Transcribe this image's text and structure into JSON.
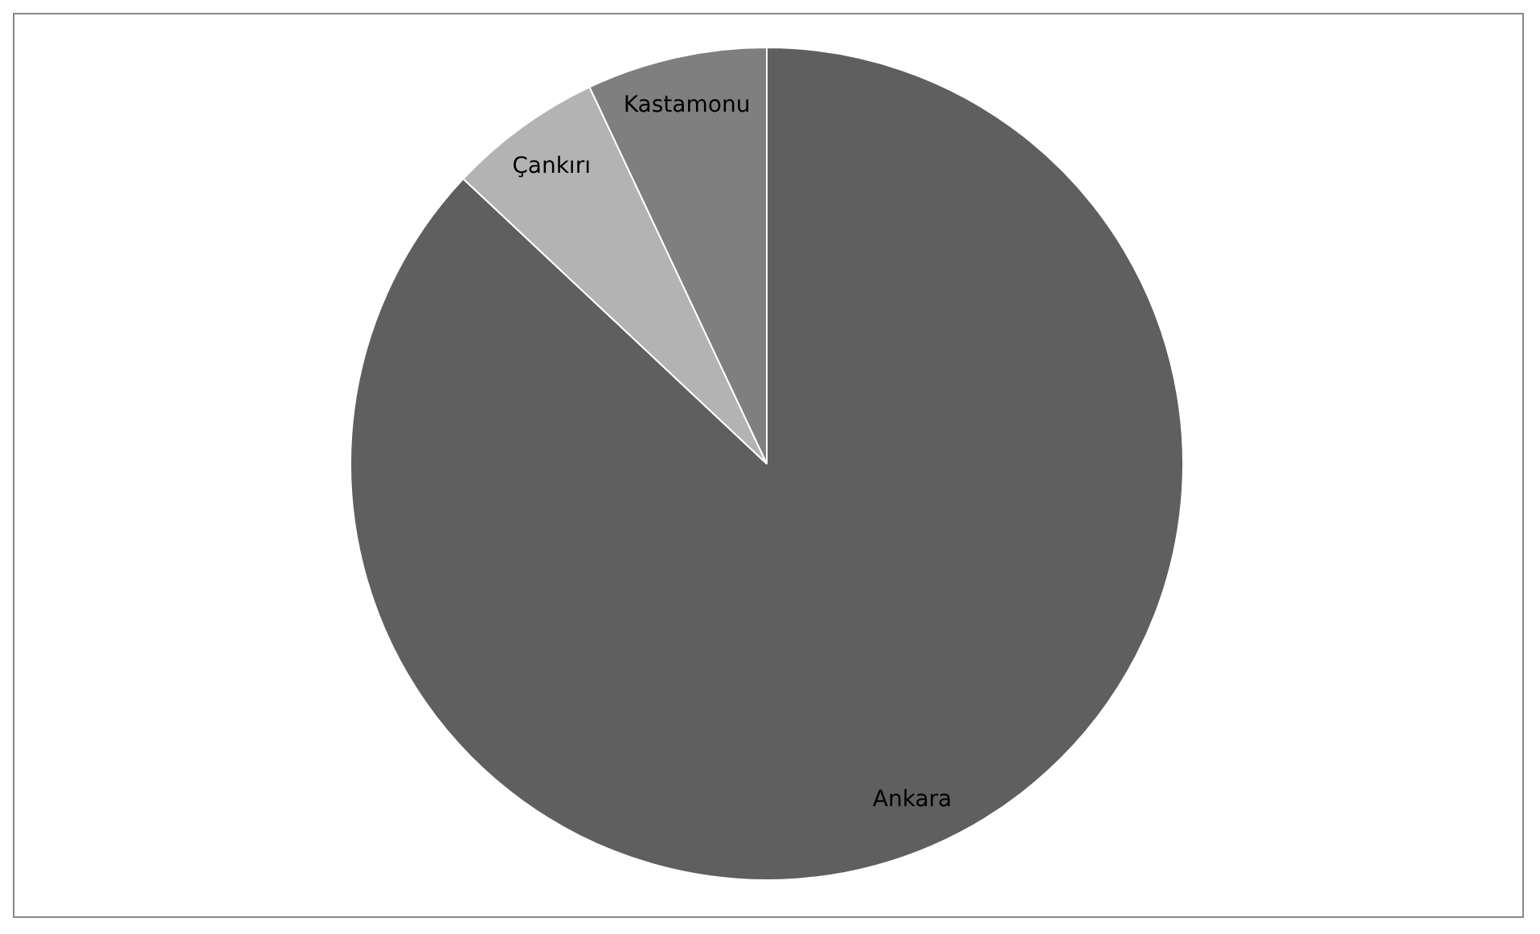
{
  "chart_data": {
    "type": "pie",
    "categories": [
      "Ankara",
      "Çankırı",
      "Kastamonu"
    ],
    "values": [
      87,
      6,
      7
    ],
    "colors": [
      "#5f5f5f",
      "#b3b3b3",
      "#7f7f7f"
    ],
    "legend": false
  }
}
